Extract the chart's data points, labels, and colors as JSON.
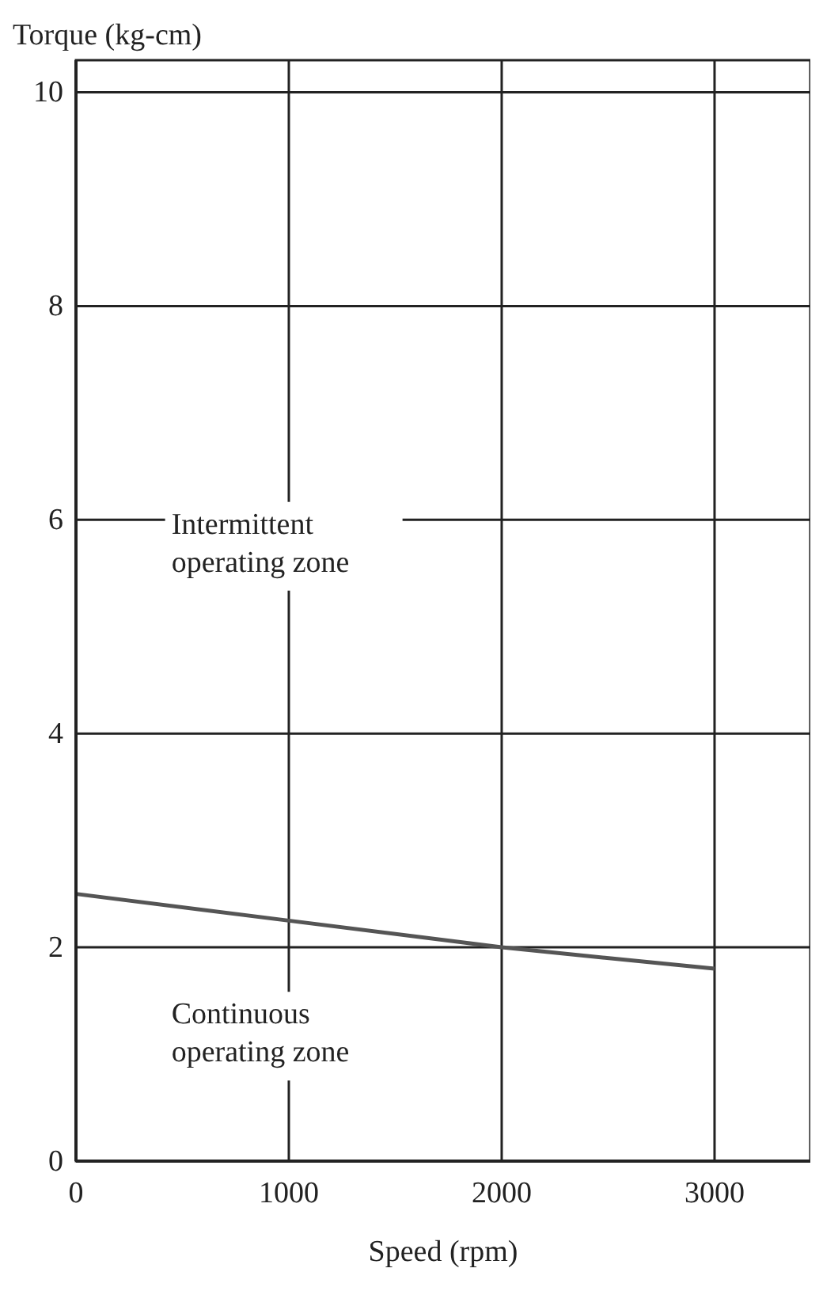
{
  "chart_data": {
    "type": "line",
    "ylabel": "Torque (kg-cm)",
    "xlabel": "Speed (rpm)",
    "x": [
      0,
      1000,
      2000,
      3000
    ],
    "series": [
      {
        "color": "#555555",
        "values": [
          2.5,
          2.25,
          2.0,
          1.8
        ]
      }
    ],
    "xlim": [
      0,
      3450
    ],
    "xticks": [
      0,
      1000,
      2000,
      3000
    ],
    "ylim": [
      0,
      10.3
    ],
    "yticks": [
      0,
      2,
      4,
      6,
      8,
      10
    ],
    "grid": true,
    "annotations": [
      "Intermittent\noperating zone",
      "Continuous\noperating zone"
    ]
  }
}
